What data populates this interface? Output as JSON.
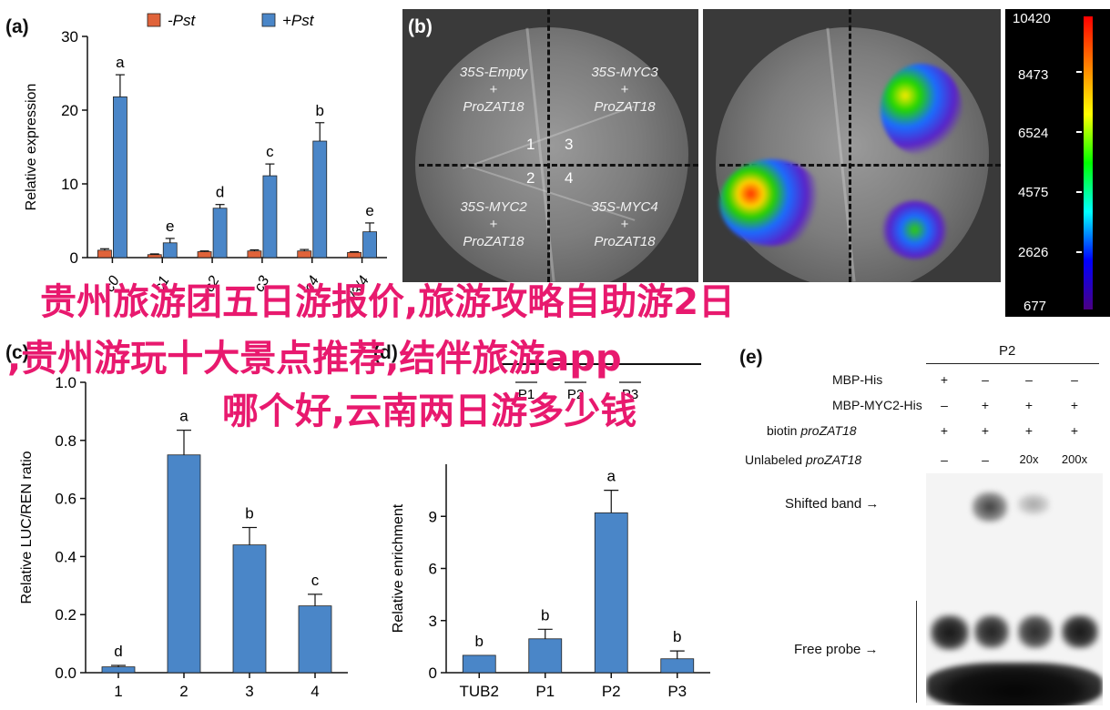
{
  "panels": {
    "a": "(a)",
    "b": "(b)",
    "c": "(c)",
    "d": "(d)",
    "e": "(e)"
  },
  "panel_a": {
    "ylabel": "Relative expression",
    "legend": [
      "-Pst",
      "+Pst"
    ],
    "colors": {
      "minus": "#e0633a",
      "plus": "#4a86c8"
    }
  },
  "panel_b": {
    "quadrants": [
      {
        "l1": "35S-Empty",
        "l2": "+",
        "l3": "ProZAT18"
      },
      {
        "l1": "35S-MYC3",
        "l2": "+",
        "l3": "ProZAT18"
      },
      {
        "l1": "35S-MYC2",
        "l2": "+",
        "l3": "ProZAT18"
      },
      {
        "l1": "35S-MYC4",
        "l2": "+",
        "l3": "ProZAT18"
      }
    ],
    "numbers": [
      "1",
      "3",
      "2",
      "4"
    ],
    "colorbar_ticks": [
      "10420",
      "8473",
      "6524",
      "4575",
      "2626",
      "677"
    ]
  },
  "chart_data": [
    {
      "type": "bar",
      "panel": "a",
      "ylabel": "Relative expression",
      "ylim": [
        0,
        30
      ],
      "yticks": [
        0,
        10,
        20,
        30
      ],
      "categories": [
        "myc0",
        "myc1",
        "myc2",
        "myc3",
        "myc4",
        "myc2/3/4"
      ],
      "category_labels_visible": [
        "c0",
        "c1",
        "c2",
        "c3",
        "c4",
        "c2/3/4"
      ],
      "series": [
        {
          "name": "-Pst",
          "values": [
            1.0,
            0.4,
            0.8,
            0.9,
            0.9,
            0.7
          ],
          "errors": [
            0.2,
            0.1,
            0.1,
            0.15,
            0.2,
            0.1
          ]
        },
        {
          "name": "+Pst",
          "values": [
            21.8,
            2.0,
            6.7,
            11.1,
            15.8,
            3.5
          ],
          "errors": [
            3.0,
            0.6,
            0.5,
            1.6,
            2.5,
            1.2
          ],
          "letters": [
            "a",
            "e",
            "d",
            "c",
            "b",
            "e"
          ]
        }
      ]
    },
    {
      "type": "bar",
      "panel": "c",
      "ylabel": "Relative LUC/REN ratio",
      "ylim": [
        0,
        1.0
      ],
      "yticks": [
        0.0,
        0.2,
        0.4,
        0.6,
        0.8,
        1.0
      ],
      "categories": [
        "1",
        "2",
        "3",
        "4"
      ],
      "values": [
        0.02,
        0.75,
        0.44,
        0.23
      ],
      "errors": [
        0.005,
        0.085,
        0.06,
        0.04
      ],
      "letters": [
        "d",
        "a",
        "b",
        "c"
      ]
    },
    {
      "type": "bar",
      "panel": "d",
      "ylabel": "Relative enrichment",
      "ylim": [
        0,
        12
      ],
      "yticks": [
        0,
        3,
        6,
        9
      ],
      "categories": [
        "TUB2",
        "P1",
        "P2",
        "P3"
      ],
      "values": [
        1.0,
        1.95,
        9.2,
        0.8
      ],
      "errors": [
        0.0,
        0.55,
        1.3,
        0.45
      ],
      "letters": [
        "b",
        "b",
        "a",
        "b"
      ]
    }
  ],
  "panel_d_extra": {
    "top_labels": [
      "P1",
      "P2",
      "P3"
    ]
  },
  "panel_e": {
    "header": "P2",
    "rows": [
      {
        "label": "MBP-His",
        "cells": [
          "+",
          "–",
          "–",
          "–"
        ]
      },
      {
        "label": "MBP-MYC2-His",
        "cells": [
          "–",
          "+",
          "+",
          "+"
        ]
      },
      {
        "label_plain": "biotin ",
        "label_ital": "proZAT18",
        "cells": [
          "+",
          "+",
          "+",
          "+"
        ]
      },
      {
        "label_plain": "Unlabeled ",
        "label_ital": "proZAT18",
        "cells": [
          "–",
          "–",
          "20x",
          "200x"
        ]
      }
    ],
    "shifted_label": "Shifted band",
    "free_label": "Free probe"
  },
  "overlay": {
    "line1": "贵州旅游团五日游报价,旅游攻略自助游2日",
    "line2": ",贵州游玩十大景点推荐,结伴旅游app",
    "line3": "哪个好,云南两日游多少钱"
  }
}
